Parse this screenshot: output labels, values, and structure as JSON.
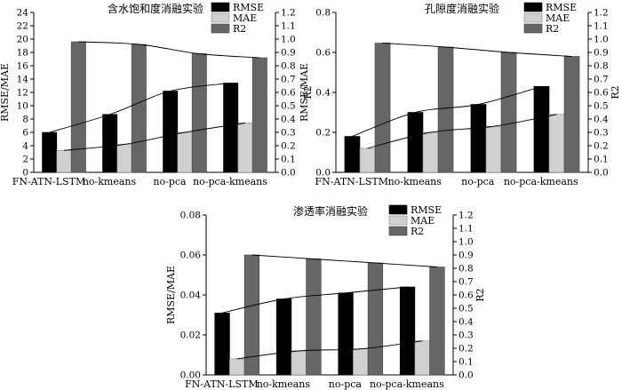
{
  "chart_data": [
    {
      "type": "bar",
      "title": "含水饱和度消融实验",
      "categories": [
        "FN-ATN-LSTM",
        "no-kmeans",
        "no-pca",
        "no-pca-kmeans"
      ],
      "ylabel": "RMSE/MAE",
      "y2label": "R2",
      "ylim": [
        0,
        24
      ],
      "yticks": [
        0,
        2,
        4,
        6,
        8,
        10,
        12,
        14,
        16,
        18,
        20,
        22,
        24
      ],
      "y2lim": [
        0,
        1.2
      ],
      "y2ticks": [
        0.0,
        0.1,
        0.2,
        0.3,
        0.4,
        0.5,
        0.6,
        0.7,
        0.8,
        0.9,
        1.0,
        1.1,
        1.2
      ],
      "legend": "top-right",
      "series": [
        {
          "name": "RMSE",
          "axis": "left",
          "color": "#000000",
          "values": [
            6.0,
            8.7,
            12.2,
            13.4
          ]
        },
        {
          "name": "MAE",
          "axis": "left",
          "color": "#d0d0d0",
          "values": [
            3.3,
            4.2,
            6.0,
            7.4
          ]
        },
        {
          "name": "R2",
          "axis": "right",
          "color": "#666666",
          "values": [
            0.98,
            0.96,
            0.89,
            0.86
          ]
        }
      ]
    },
    {
      "type": "bar",
      "title": "孔隙度消融实验",
      "categories": [
        "FN-ATN-LSTM",
        "no-kmeans",
        "no-pca",
        "no-pca-kmeans"
      ],
      "ylabel": "RMSE/MAE",
      "y2label": "R2",
      "ylim": [
        0,
        0.8
      ],
      "yticks": [
        0.0,
        0.2,
        0.4,
        0.6,
        0.8
      ],
      "y2lim": [
        0,
        1.2
      ],
      "y2ticks": [
        0.0,
        0.1,
        0.2,
        0.3,
        0.4,
        0.5,
        0.6,
        0.7,
        0.8,
        0.9,
        1.0,
        1.1,
        1.2
      ],
      "legend": "top-right",
      "series": [
        {
          "name": "RMSE",
          "axis": "left",
          "color": "#000000",
          "values": [
            0.18,
            0.3,
            0.34,
            0.43
          ]
        },
        {
          "name": "MAE",
          "axis": "left",
          "color": "#d0d0d0",
          "values": [
            0.12,
            0.2,
            0.23,
            0.29
          ]
        },
        {
          "name": "R2",
          "axis": "right",
          "color": "#666666",
          "values": [
            0.97,
            0.94,
            0.9,
            0.87
          ]
        }
      ]
    },
    {
      "type": "bar",
      "title": "渗透率消融实验",
      "categories": [
        "FN-ATN-LSTM",
        "no-kmeans",
        "no-pca",
        "no-pca-kmeans"
      ],
      "ylabel": "RMSE/MAE",
      "y2label": "R2",
      "ylim": [
        0,
        0.08
      ],
      "yticks": [
        0.0,
        0.02,
        0.04,
        0.06,
        0.08
      ],
      "y2lim": [
        0,
        1.2
      ],
      "y2ticks": [
        0.0,
        0.1,
        0.2,
        0.3,
        0.4,
        0.5,
        0.6,
        0.7,
        0.8,
        0.9,
        1.0,
        1.1,
        1.2
      ],
      "legend": "top-right",
      "series": [
        {
          "name": "RMSE",
          "axis": "left",
          "color": "#000000",
          "values": [
            0.031,
            0.038,
            0.041,
            0.044
          ]
        },
        {
          "name": "MAE",
          "axis": "left",
          "color": "#d0d0d0",
          "values": [
            0.008,
            0.012,
            0.013,
            0.017
          ]
        },
        {
          "name": "R2",
          "axis": "right",
          "color": "#666666",
          "values": [
            0.9,
            0.87,
            0.84,
            0.81
          ]
        }
      ]
    }
  ]
}
